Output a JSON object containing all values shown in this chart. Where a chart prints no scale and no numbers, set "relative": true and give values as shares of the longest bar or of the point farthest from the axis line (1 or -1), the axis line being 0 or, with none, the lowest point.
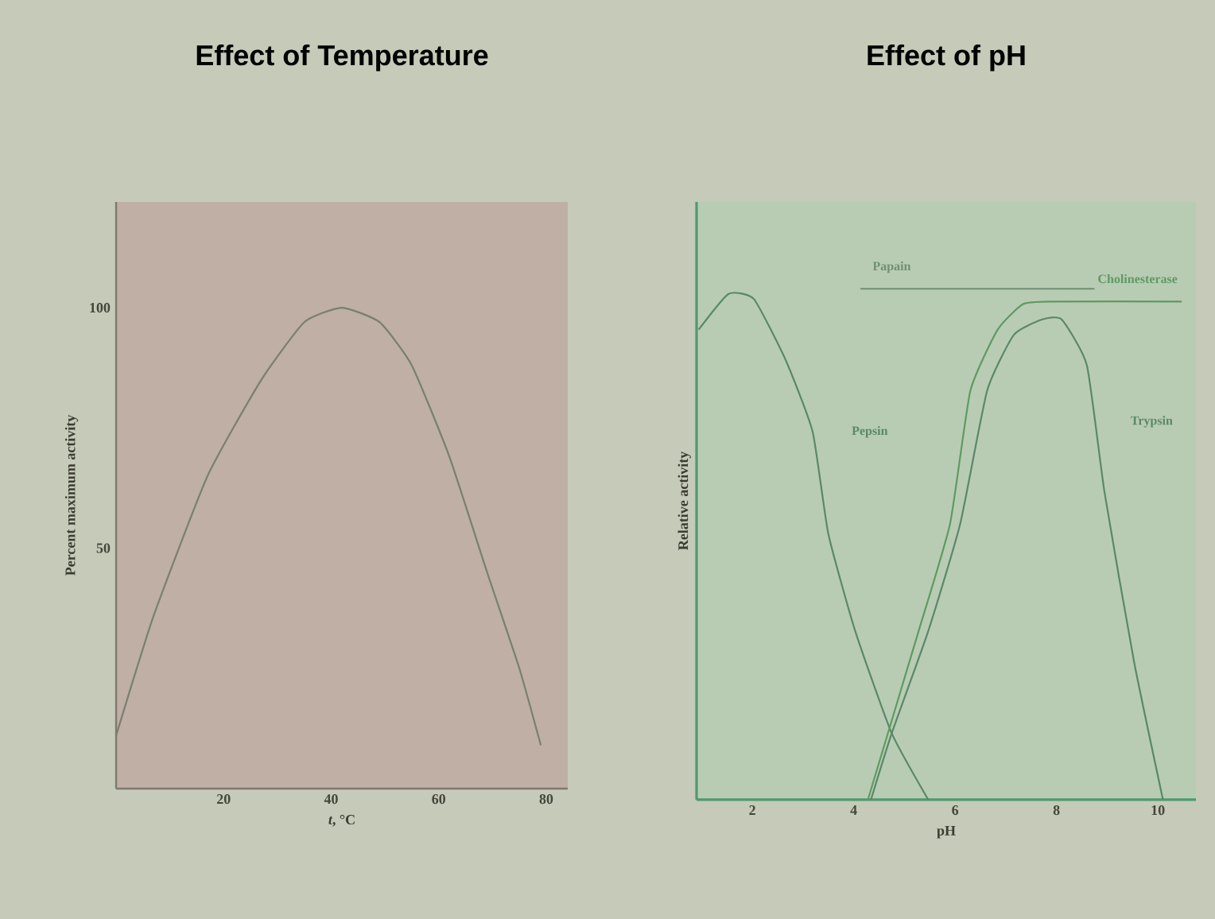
{
  "chart_data": [
    {
      "type": "line",
      "title": "Effect of Temperature",
      "xlabel": "*t*, °C",
      "ylabel": "Percent maximum activity",
      "xlim": [
        0,
        84
      ],
      "xticks": [
        20,
        40,
        60,
        80
      ],
      "ylim": [
        0,
        122
      ],
      "yticks": [
        50,
        100
      ],
      "x": [
        0,
        7,
        17,
        27,
        35,
        42,
        49,
        55,
        62,
        69,
        75,
        79
      ],
      "series": [
        {
          "color": "#7a7f6e",
          "values": [
            11,
            36,
            65,
            85,
            97,
            100,
            97,
            88,
            69,
            45,
            25,
            9
          ]
        }
      ]
    },
    {
      "type": "line",
      "title": "Effect of pH",
      "xlabel": "pH",
      "ylabel": "Relative activity",
      "xlim": [
        0.9,
        10.75
      ],
      "xticks": [
        2,
        4,
        6,
        8,
        10
      ],
      "relative": true,
      "tick_labels": "x",
      "series": [
        {
          "name": "Pepsin",
          "color": "#5a8868",
          "x": [
            0.94,
            1.53,
            2.03,
            2.66,
            3.19,
            3.5,
            4.03,
            4.75,
            5.47
          ],
          "values": [
            0.92,
            0.99,
            0.98,
            0.86,
            0.72,
            0.52,
            0.33,
            0.13,
            0.0
          ]
        },
        {
          "name": "Trypsin",
          "color": "#5a8868",
          "x": [
            4.34,
            4.75,
            5.47,
            6.1,
            6.63,
            7.16,
            7.72,
            8.1,
            8.6,
            8.95,
            9.53,
            10.1
          ],
          "values": [
            0.0,
            0.13,
            0.33,
            0.54,
            0.8,
            0.91,
            0.94,
            0.94,
            0.85,
            0.6,
            0.27,
            0.0
          ]
        },
        {
          "name": "Cholinesterase",
          "color": "#5f9a62",
          "x": [
            4.28,
            5.28,
            5.9,
            6.3,
            6.84,
            7.34,
            7.88,
            10.47
          ],
          "values": [
            0.0,
            0.33,
            0.54,
            0.8,
            0.92,
            0.97,
            0.975,
            0.975
          ]
        },
        {
          "name": "Papain",
          "color": "#6f8f74",
          "x": [
            4.13,
            8.75
          ],
          "values": [
            1.0,
            1.0
          ]
        }
      ]
    }
  ]
}
